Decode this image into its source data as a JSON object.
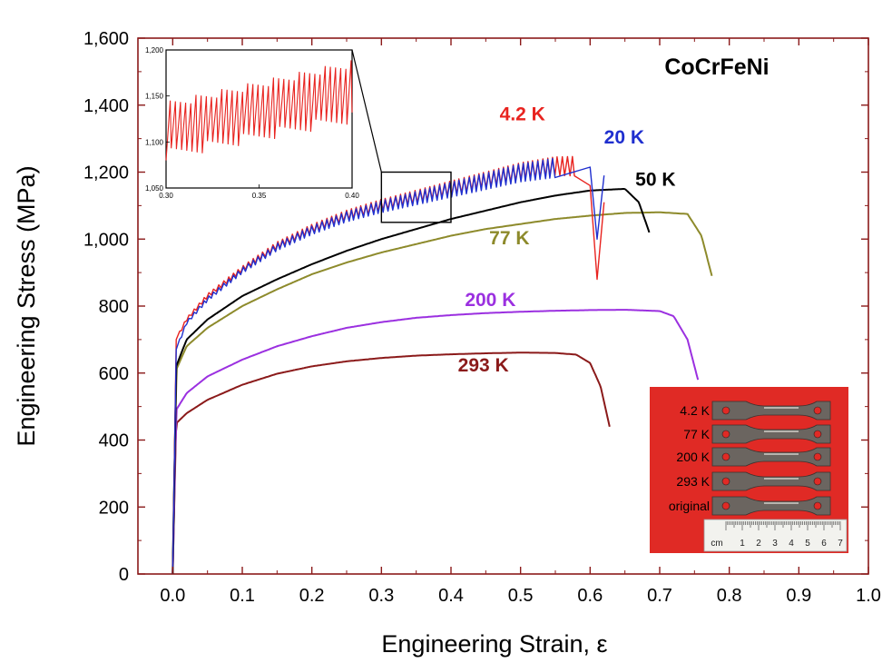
{
  "chart_data": {
    "type": "line",
    "title": "CoCrFeNi",
    "xlabel": "Engineering Strain, ε",
    "ylabel": "Engineering Stress (MPa)",
    "xlim": [
      -0.05,
      1.0
    ],
    "ylim": [
      0,
      1600
    ],
    "x_ticks": [
      "0.0",
      "0.1",
      "0.2",
      "0.3",
      "0.4",
      "0.5",
      "0.6",
      "0.7",
      "0.8",
      "0.9",
      "1.0"
    ],
    "y_ticks": [
      "0",
      "200",
      "400",
      "600",
      "800",
      "1,000",
      "1,200",
      "1,400",
      "1,600"
    ],
    "grid": false,
    "series": [
      {
        "name": "4.2 K",
        "color": "#e8231f",
        "serrated": true,
        "x": [
          0,
          0.005,
          0.02,
          0.05,
          0.1,
          0.15,
          0.2,
          0.25,
          0.3,
          0.35,
          0.4,
          0.45,
          0.5,
          0.55,
          0.58,
          0.6,
          0.61,
          0.62
        ],
        "y": [
          0,
          700,
          760,
          830,
          910,
          980,
          1030,
          1070,
          1100,
          1125,
          1150,
          1175,
          1200,
          1215,
          1215,
          1160,
          880,
          1110
        ]
      },
      {
        "name": "20 K",
        "color": "#1f2fcf",
        "serrated": true,
        "x": [
          0,
          0.005,
          0.02,
          0.05,
          0.1,
          0.15,
          0.2,
          0.25,
          0.3,
          0.35,
          0.4,
          0.45,
          0.5,
          0.55,
          0.6,
          0.61,
          0.62
        ],
        "y": [
          0,
          670,
          750,
          820,
          905,
          975,
          1025,
          1065,
          1095,
          1120,
          1145,
          1170,
          1195,
          1210,
          1215,
          1000,
          1190
        ]
      },
      {
        "name": "50 K",
        "color": "#000000",
        "serrated": false,
        "x": [
          0,
          0.005,
          0.02,
          0.05,
          0.1,
          0.15,
          0.2,
          0.25,
          0.3,
          0.35,
          0.4,
          0.45,
          0.5,
          0.55,
          0.6,
          0.65,
          0.67,
          0.685
        ],
        "y": [
          0,
          620,
          700,
          760,
          830,
          880,
          925,
          965,
          1000,
          1030,
          1060,
          1085,
          1110,
          1130,
          1145,
          1150,
          1110,
          1020
        ]
      },
      {
        "name": "77 K",
        "color": "#8d8a2b",
        "serrated": false,
        "x": [
          0,
          0.005,
          0.02,
          0.05,
          0.1,
          0.15,
          0.2,
          0.25,
          0.3,
          0.35,
          0.4,
          0.45,
          0.5,
          0.55,
          0.6,
          0.65,
          0.7,
          0.74,
          0.76,
          0.775
        ],
        "y": [
          0,
          610,
          680,
          735,
          800,
          850,
          895,
          930,
          960,
          985,
          1010,
          1030,
          1045,
          1060,
          1070,
          1078,
          1080,
          1075,
          1010,
          890
        ]
      },
      {
        "name": "200 K",
        "color": "#9b30e0",
        "serrated": false,
        "x": [
          0,
          0.005,
          0.02,
          0.05,
          0.1,
          0.15,
          0.2,
          0.25,
          0.3,
          0.35,
          0.4,
          0.45,
          0.5,
          0.55,
          0.6,
          0.65,
          0.7,
          0.72,
          0.74,
          0.755
        ],
        "y": [
          0,
          490,
          540,
          590,
          640,
          680,
          710,
          735,
          752,
          765,
          773,
          779,
          783,
          786,
          788,
          789,
          785,
          770,
          700,
          580
        ]
      },
      {
        "name": "293 K",
        "color": "#8b1a1a",
        "serrated": false,
        "x": [
          0,
          0.005,
          0.02,
          0.05,
          0.1,
          0.15,
          0.2,
          0.25,
          0.3,
          0.35,
          0.4,
          0.45,
          0.5,
          0.55,
          0.58,
          0.6,
          0.615,
          0.628
        ],
        "y": [
          0,
          450,
          480,
          520,
          565,
          598,
          620,
          635,
          645,
          652,
          656,
          659,
          661,
          660,
          655,
          630,
          560,
          440
        ]
      }
    ],
    "annotations": [
      {
        "text": "4.2 K",
        "x": 0.47,
        "y": 1355
      },
      {
        "text": "20 K",
        "x": 0.62,
        "y": 1285
      },
      {
        "text": "50 K",
        "x": 0.665,
        "y": 1160
      },
      {
        "text": "77 K",
        "x": 0.455,
        "y": 985
      },
      {
        "text": "200 K",
        "x": 0.42,
        "y": 800
      },
      {
        "text": "293 K",
        "x": 0.41,
        "y": 605
      }
    ],
    "zoom_box": {
      "xlim": [
        0.3,
        0.4
      ],
      "ylim": [
        1050,
        1200
      ]
    },
    "inset": {
      "xlim": [
        0.3,
        0.4
      ],
      "ylim": [
        1050,
        1200
      ],
      "x_ticks": [
        "0.30",
        "0.35",
        "0.40"
      ],
      "y_ticks": [
        "1,050",
        "1,100",
        "1,150",
        "1,200"
      ],
      "series_color": "#e8231f",
      "serration_cycles": 36,
      "trend": {
        "start_low": 1080,
        "start_high": 1145,
        "end_low": 1120,
        "end_high": 1190
      }
    },
    "photo": {
      "background": "#e02a25",
      "labels": [
        "4.2 K",
        "77 K",
        "200 K",
        "293 K",
        "original"
      ],
      "ruler_ticks": [
        "cm",
        "1",
        "2",
        "3",
        "4",
        "5",
        "6",
        "7"
      ]
    }
  }
}
